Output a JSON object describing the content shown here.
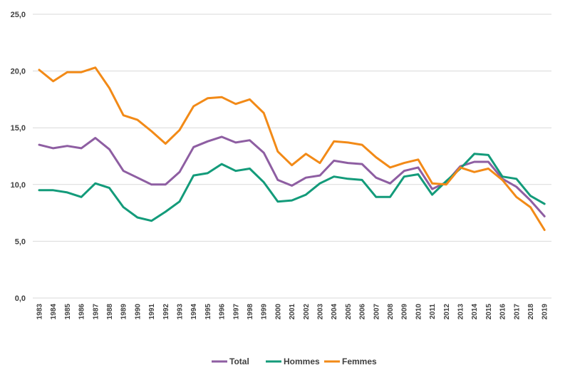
{
  "chart_data": {
    "type": "line",
    "x": [
      "1983",
      "1984",
      "1985",
      "1986",
      "1987",
      "1988",
      "1989",
      "1990",
      "1991",
      "1992",
      "1993",
      "1994",
      "1995",
      "1996",
      "1997",
      "1998",
      "1999",
      "2000",
      "2001",
      "2002",
      "2003",
      "2004",
      "2005",
      "2006",
      "2007",
      "2008",
      "2009",
      "2010",
      "2011",
      "2012",
      "2013",
      "2014",
      "2015",
      "2016",
      "2017",
      "2018",
      "2019"
    ],
    "ylim": [
      0,
      25
    ],
    "y_ticks": [
      "0,0",
      "5,0",
      "10,0",
      "15,0",
      "20,0",
      "25,0"
    ],
    "y_tick_values": [
      0,
      5,
      10,
      15,
      20,
      25
    ],
    "grid": true,
    "legend_position": "bottom",
    "series": [
      {
        "name": "Total",
        "color": "#8e5ea2",
        "values": [
          13.5,
          13.2,
          13.4,
          13.2,
          14.1,
          13.1,
          11.2,
          10.6,
          10.0,
          10.0,
          11.1,
          13.3,
          13.8,
          14.2,
          13.7,
          13.9,
          12.8,
          10.4,
          9.9,
          10.6,
          10.8,
          12.1,
          11.9,
          11.8,
          10.6,
          10.1,
          11.2,
          11.5,
          9.6,
          10.2,
          11.6,
          12.0,
          12.0,
          10.5,
          9.8,
          8.6,
          7.2
        ]
      },
      {
        "name": "Hommes",
        "color": "#139b7a",
        "values": [
          9.5,
          9.5,
          9.3,
          8.9,
          10.1,
          9.7,
          8.0,
          7.1,
          6.8,
          7.6,
          8.5,
          10.8,
          11.0,
          11.8,
          11.2,
          11.4,
          10.2,
          8.5,
          8.6,
          9.1,
          10.1,
          10.7,
          10.5,
          10.4,
          8.9,
          8.9,
          10.7,
          10.9,
          9.1,
          10.3,
          11.4,
          12.7,
          12.6,
          10.7,
          10.5,
          9.0,
          8.3
        ]
      },
      {
        "name": "Femmes",
        "color": "#f28a17",
        "values": [
          20.1,
          19.1,
          19.9,
          19.9,
          20.3,
          18.5,
          16.1,
          15.7,
          14.7,
          13.6,
          14.8,
          16.9,
          17.6,
          17.7,
          17.1,
          17.5,
          16.3,
          12.9,
          11.7,
          12.7,
          11.9,
          13.8,
          13.7,
          13.5,
          12.4,
          11.5,
          11.9,
          12.2,
          10.1,
          10.0,
          11.5,
          11.1,
          11.4,
          10.4,
          8.9,
          8.0,
          6.0
        ]
      }
    ]
  }
}
